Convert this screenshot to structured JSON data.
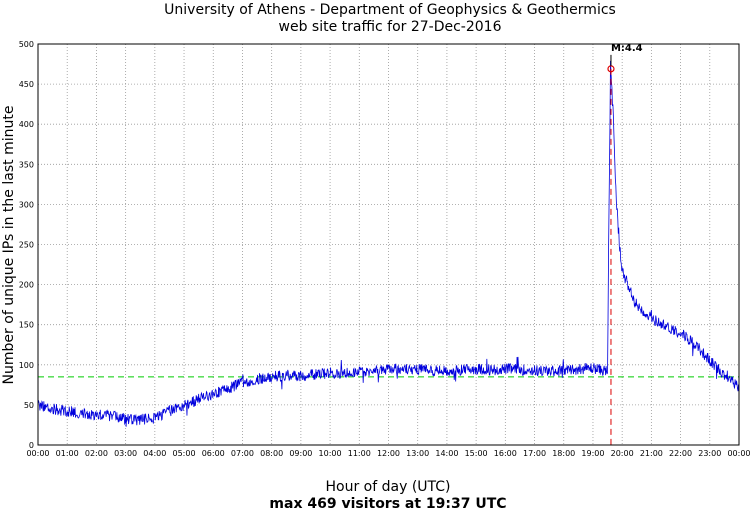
{
  "chart_data": {
    "type": "line",
    "title": "University of Athens - Department of Geophysics & Geothermics",
    "subtitle": "web site traffic for 27-Dec-2016",
    "xlabel": "Hour of day (UTC)",
    "ylabel": "Number of unique IPs in the last minute",
    "summary": "max 469 visitors at 19:37 UTC",
    "xlim": [
      0,
      24
    ],
    "ylim": [
      0,
      500
    ],
    "grid": true,
    "x_ticks": [
      "00:00",
      "01:00",
      "02:00",
      "03:00",
      "04:00",
      "05:00",
      "06:00",
      "07:00",
      "08:00",
      "09:00",
      "10:00",
      "11:00",
      "12:00",
      "13:00",
      "14:00",
      "15:00",
      "16:00",
      "17:00",
      "18:00",
      "19:00",
      "20:00",
      "21:00",
      "22:00",
      "23:00",
      "00:00"
    ],
    "y_ticks": [
      0,
      50,
      100,
      150,
      200,
      250,
      300,
      350,
      400,
      450,
      500
    ],
    "reference_line": {
      "name": "average",
      "y": 85,
      "color": "#00cc00"
    },
    "event_line": {
      "x": 19.6167,
      "color": "#dd0000"
    },
    "annotation": {
      "label": "M:4.4",
      "x": 19.6167,
      "y": 469
    },
    "series": [
      {
        "name": "visitors",
        "color": "#0000dd",
        "points": [
          [
            0,
            50
          ],
          [
            0.5,
            45
          ],
          [
            1,
            42
          ],
          [
            1.5,
            40
          ],
          [
            2,
            38
          ],
          [
            2.5,
            36
          ],
          [
            3,
            33
          ],
          [
            3.5,
            31
          ],
          [
            4,
            34
          ],
          [
            4.5,
            42
          ],
          [
            5,
            50
          ],
          [
            5.5,
            57
          ],
          [
            6,
            63
          ],
          [
            6.5,
            70
          ],
          [
            7,
            78
          ],
          [
            7.5,
            82
          ],
          [
            8,
            85
          ],
          [
            8.5,
            87
          ],
          [
            9,
            86
          ],
          [
            9.5,
            88
          ],
          [
            10,
            90
          ],
          [
            10.5,
            90
          ],
          [
            11,
            92
          ],
          [
            11.5,
            93
          ],
          [
            12,
            95
          ],
          [
            12.5,
            94
          ],
          [
            13,
            95
          ],
          [
            13.5,
            93
          ],
          [
            14,
            92
          ],
          [
            14.5,
            94
          ],
          [
            15,
            95
          ],
          [
            15.5,
            94
          ],
          [
            16,
            95
          ],
          [
            16.5,
            94
          ],
          [
            17,
            93
          ],
          [
            17.5,
            92
          ],
          [
            18,
            93
          ],
          [
            18.5,
            95
          ],
          [
            19,
            96
          ],
          [
            19.5,
            92
          ],
          [
            19.55,
            300
          ],
          [
            19.6,
            469
          ],
          [
            19.65,
            440
          ],
          [
            19.7,
            405
          ],
          [
            19.75,
            350
          ],
          [
            19.8,
            300
          ],
          [
            19.9,
            255
          ],
          [
            20,
            220
          ],
          [
            20.2,
            195
          ],
          [
            20.5,
            175
          ],
          [
            21,
            158
          ],
          [
            21.5,
            148
          ],
          [
            22,
            140
          ],
          [
            22.5,
            126
          ],
          [
            23,
            105
          ],
          [
            23.5,
            88
          ],
          [
            24,
            72
          ]
        ]
      }
    ]
  }
}
